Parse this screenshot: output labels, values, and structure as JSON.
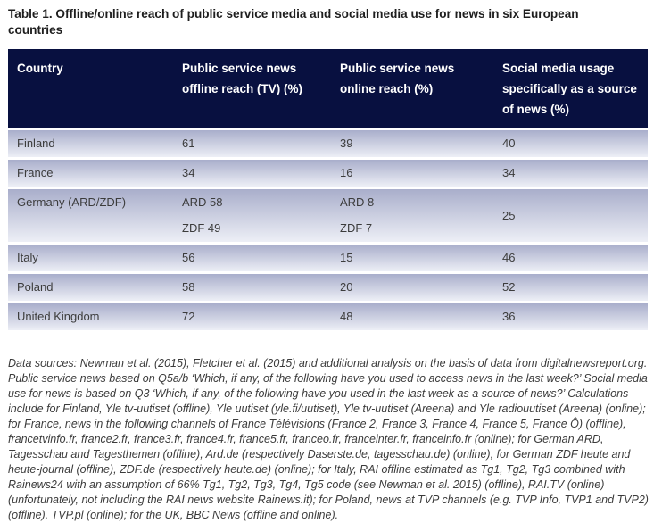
{
  "title": "Table 1. Offline/online reach of public service media and social media use for news in six European countries",
  "table": {
    "headers": [
      "Country",
      "Public service news offline reach (TV) (%)",
      "Public service news online reach (%)",
      "Social media usage specifically as a source of news (%)"
    ],
    "rows": [
      {
        "country": "Finland",
        "offline_1": "61",
        "online_1": "39",
        "social": "40"
      },
      {
        "country": "France",
        "offline_1": "34",
        "online_1": "16",
        "social": "34"
      },
      {
        "country": "Germany (ARD/ZDF)",
        "offline_1": "ARD 58",
        "offline_2": "ZDF 49",
        "online_1": "ARD 8",
        "online_2": "ZDF 7",
        "social": "25"
      },
      {
        "country": "Italy",
        "offline_1": "56",
        "online_1": "15",
        "social": "46"
      },
      {
        "country": "Poland",
        "offline_1": "58",
        "online_1": "20",
        "social": "52"
      },
      {
        "country": "United Kingdom",
        "offline_1": "72",
        "online_1": "48",
        "social": "36"
      }
    ]
  },
  "footnote": "Data sources: Newman et al. (2015), Fletcher et al. (2015) and additional analysis on the basis of data from digitalnewsreport.org. Public service news based on Q5a/b ‘Which, if any, of the following have you used to access news in the last week?’ Social media use for news is based on Q3 ‘Which, if any, of the following have you used in the last week as a source of news?’ Calculations include for Finland, Yle tv-uutiset (offline), Yle uutiset (yle.fi/uutiset), Yle tv-uutiset (Areena) and Yle radiouutiset (Areena) (online); for France, news in the following channels of France Télévisions (France 2, France 3, France 4, France 5, France Ô) (offline), francetvinfo.fr, france2.fr, france3.fr, france4.fr, france5.fr, franceo.fr, franceinter.fr, franceinfo.fr (online); for German ARD, Tagesschau and Tagesthemen (offline), Ard.de (respectively Daserste.de, tagesschau.de) (online), for German ZDF heute and heute-journal (offline), ZDF.de (respectively heute.de) (online); for Italy, RAI offline estimated as Tg1, Tg2, Tg3 combined with Rainews24 with an assumption of 66% Tg1, Tg2, Tg3, Tg4, Tg5 code (see Newman et al. 2015) (offline), RAI.TV (online) (unfortunately, not including the RAI news website Rainews.it); for Poland, news at TVP channels (e.g. TVP Info, TVP1 and TVP2) (offline), TVP.pl (online); for the UK, BBC News (offline and online).",
  "colors": {
    "header_bg": "#081040",
    "header_text": "#ffffff",
    "row_gradient_top": "#a9aecb",
    "row_gradient_bottom": "#edeff6",
    "body_text": "#3c3c3c"
  }
}
